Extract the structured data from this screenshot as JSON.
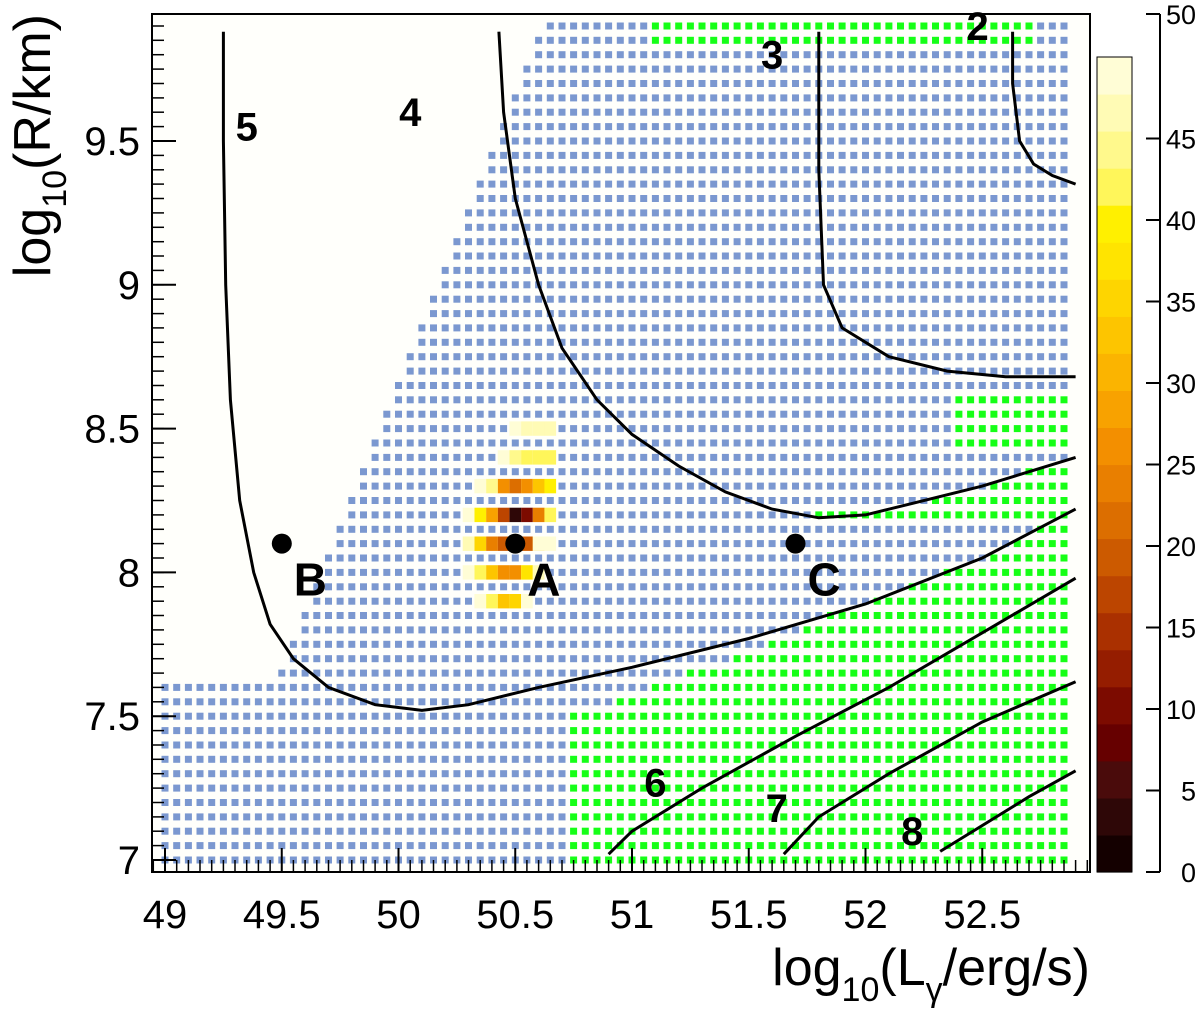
{
  "chart_data": {
    "type": "heatmap",
    "title": "",
    "xlabel": {
      "pre": "log",
      "sub": "10",
      "mid": "(L",
      "sub2": "γ",
      "post": "/erg/s)"
    },
    "ylabel": {
      "pre": "log",
      "sub": "10",
      "post": "(R/km)"
    },
    "xlim": [
      48.95,
      52.95
    ],
    "ylim": [
      6.95,
      9.95
    ],
    "x_ticks": [
      49,
      49.5,
      50,
      50.5,
      51,
      51.5,
      52,
      52.5
    ],
    "x_tick_labels": [
      "49",
      "49.5",
      "50",
      "50.5",
      "51",
      "51.5",
      "52",
      "52.5"
    ],
    "y_ticks": [
      7,
      7.5,
      8,
      8.5,
      9,
      9.5
    ],
    "y_tick_labels": [
      "7",
      "7.5",
      "8",
      "8.5",
      "9",
      "9.5"
    ],
    "grid": false,
    "colorbar": {
      "range": [
        0,
        50
      ],
      "ticks": [
        0,
        5,
        10,
        15,
        20,
        25,
        30,
        35,
        40,
        45,
        50
      ],
      "tick_labels": [
        "0",
        "5",
        "10",
        "15",
        "20",
        "25",
        "30",
        "35",
        "40",
        "45",
        "50"
      ],
      "colors": [
        "#140000",
        "#2e0707",
        "#4a0b0b",
        "#660000",
        "#7c0b00",
        "#951d00",
        "#aa3000",
        "#bc4500",
        "#cc5a00",
        "#dc6e00",
        "#e97f00",
        "#f38f00",
        "#f8a200",
        "#fbb400",
        "#fdc500",
        "#fed500",
        "#ffe400",
        "#fff000",
        "#fff65a",
        "#fff98c",
        "#fffbb5",
        "#fffdd6"
      ]
    },
    "colors": {
      "blue_markers": "#7b98d0",
      "green_markers": "#16ff16",
      "background": "#fffffb"
    },
    "heatmap_cells": [
      {
        "x": 50.5,
        "y": 8.2,
        "v": 4
      },
      {
        "x": 50.55,
        "y": 8.2,
        "v": 11
      },
      {
        "x": 50.45,
        "y": 8.2,
        "v": 17
      },
      {
        "x": 50.5,
        "y": 8.1,
        "v": 17
      },
      {
        "x": 50.55,
        "y": 8.1,
        "v": 19
      },
      {
        "x": 50.45,
        "y": 8.1,
        "v": 20
      },
      {
        "x": 50.5,
        "y": 8.3,
        "v": 22
      },
      {
        "x": 50.6,
        "y": 8.2,
        "v": 23
      },
      {
        "x": 50.4,
        "y": 8.1,
        "v": 24
      },
      {
        "x": 50.45,
        "y": 8.3,
        "v": 26
      },
      {
        "x": 50.55,
        "y": 8.3,
        "v": 25
      },
      {
        "x": 50.45,
        "y": 8.0,
        "v": 25
      },
      {
        "x": 50.5,
        "y": 8.0,
        "v": 27
      },
      {
        "x": 50.4,
        "y": 8.2,
        "v": 28
      },
      {
        "x": 50.6,
        "y": 8.1,
        "v": 30
      },
      {
        "x": 50.6,
        "y": 8.3,
        "v": 33
      },
      {
        "x": 50.45,
        "y": 7.9,
        "v": 34
      },
      {
        "x": 50.5,
        "y": 7.9,
        "v": 36
      },
      {
        "x": 50.4,
        "y": 8.0,
        "v": 34
      },
      {
        "x": 50.55,
        "y": 8.0,
        "v": 38
      },
      {
        "x": 50.35,
        "y": 8.1,
        "v": 36
      },
      {
        "x": 50.35,
        "y": 8.2,
        "v": 40
      },
      {
        "x": 50.65,
        "y": 8.3,
        "v": 39
      },
      {
        "x": 50.65,
        "y": 8.2,
        "v": 41
      },
      {
        "x": 50.55,
        "y": 8.4,
        "v": 41
      },
      {
        "x": 50.6,
        "y": 8.4,
        "v": 42
      },
      {
        "x": 50.65,
        "y": 8.4,
        "v": 42
      },
      {
        "x": 50.5,
        "y": 8.4,
        "v": 45
      },
      {
        "x": 50.4,
        "y": 8.3,
        "v": 45
      },
      {
        "x": 50.4,
        "y": 7.9,
        "v": 41
      },
      {
        "x": 50.35,
        "y": 8.0,
        "v": 42
      },
      {
        "x": 50.6,
        "y": 8.0,
        "v": 47
      },
      {
        "x": 50.45,
        "y": 8.4,
        "v": 49
      },
      {
        "x": 50.5,
        "y": 8.5,
        "v": 49
      },
      {
        "x": 50.55,
        "y": 8.5,
        "v": 47
      },
      {
        "x": 50.6,
        "y": 8.5,
        "v": 47
      },
      {
        "x": 50.65,
        "y": 8.5,
        "v": 47
      },
      {
        "x": 50.3,
        "y": 8.1,
        "v": 47
      },
      {
        "x": 50.3,
        "y": 8.0,
        "v": 48
      },
      {
        "x": 50.3,
        "y": 8.2,
        "v": 49
      },
      {
        "x": 50.35,
        "y": 8.3,
        "v": 48
      },
      {
        "x": 50.6,
        "y": 8.1,
        "v": 48
      },
      {
        "x": 50.65,
        "y": 8.1,
        "v": 49
      },
      {
        "x": 50.35,
        "y": 7.9,
        "v": 48
      },
      {
        "x": 50.55,
        "y": 7.9,
        "v": 49
      }
    ],
    "contours": [
      {
        "label": "5",
        "label_at": [
          49.35,
          9.55
        ],
        "points": [
          [
            49.25,
            9.88
          ],
          [
            49.25,
            9.5
          ],
          [
            49.26,
            9.0
          ],
          [
            49.28,
            8.6
          ],
          [
            49.32,
            8.25
          ],
          [
            49.38,
            8.0
          ],
          [
            49.45,
            7.82
          ],
          [
            49.55,
            7.7
          ],
          [
            49.7,
            7.6
          ],
          [
            49.9,
            7.54
          ],
          [
            50.1,
            7.52
          ],
          [
            50.3,
            7.54
          ],
          [
            50.6,
            7.6
          ],
          [
            51.0,
            7.67
          ],
          [
            51.5,
            7.77
          ],
          [
            52.0,
            7.89
          ],
          [
            52.5,
            8.05
          ],
          [
            52.9,
            8.22
          ]
        ]
      },
      {
        "label": "4",
        "label_at": [
          50.05,
          9.6
        ],
        "points": [
          [
            50.43,
            9.88
          ],
          [
            50.45,
            9.6
          ],
          [
            50.5,
            9.3
          ],
          [
            50.6,
            9.0
          ],
          [
            50.7,
            8.78
          ],
          [
            50.85,
            8.6
          ],
          [
            51.0,
            8.48
          ],
          [
            51.2,
            8.37
          ],
          [
            51.4,
            8.28
          ],
          [
            51.6,
            8.22
          ],
          [
            51.8,
            8.19
          ],
          [
            52.0,
            8.2
          ],
          [
            52.2,
            8.24
          ],
          [
            52.5,
            8.3
          ],
          [
            52.9,
            8.4
          ]
        ]
      },
      {
        "label": "3",
        "label_at": [
          51.6,
          9.8
        ],
        "points": [
          [
            51.8,
            9.88
          ],
          [
            51.8,
            9.4
          ],
          [
            51.82,
            9.0
          ],
          [
            51.9,
            8.85
          ],
          [
            52.1,
            8.75
          ],
          [
            52.35,
            8.7
          ],
          [
            52.6,
            8.68
          ],
          [
            52.9,
            8.68
          ]
        ]
      },
      {
        "label": "2",
        "label_at": [
          52.48,
          9.9
        ],
        "points": [
          [
            52.63,
            9.88
          ],
          [
            52.63,
            9.7
          ],
          [
            52.66,
            9.5
          ],
          [
            52.72,
            9.42
          ],
          [
            52.8,
            9.38
          ],
          [
            52.9,
            9.35
          ]
        ]
      },
      {
        "label": "6",
        "label_at": [
          51.1,
          7.27
        ],
        "points": [
          [
            50.9,
            7.02
          ],
          [
            51.0,
            7.1
          ],
          [
            51.3,
            7.25
          ],
          [
            51.7,
            7.43
          ],
          [
            52.1,
            7.6
          ],
          [
            52.5,
            7.79
          ],
          [
            52.9,
            7.98
          ]
        ]
      },
      {
        "label": "7",
        "label_at": [
          51.62,
          7.18
        ],
        "points": [
          [
            51.65,
            7.02
          ],
          [
            51.8,
            7.15
          ],
          [
            52.1,
            7.3
          ],
          [
            52.5,
            7.48
          ],
          [
            52.9,
            7.62
          ]
        ]
      },
      {
        "label": "8",
        "label_at": [
          52.2,
          7.1
        ],
        "points": [
          [
            52.32,
            7.03
          ],
          [
            52.5,
            7.12
          ],
          [
            52.7,
            7.22
          ],
          [
            52.9,
            7.31
          ]
        ]
      }
    ],
    "points": [
      {
        "label": "A",
        "x": 50.5,
        "y": 8.1
      },
      {
        "label": "B",
        "x": 49.5,
        "y": 8.1
      },
      {
        "label": "C",
        "x": 51.7,
        "y": 8.1
      }
    ]
  }
}
